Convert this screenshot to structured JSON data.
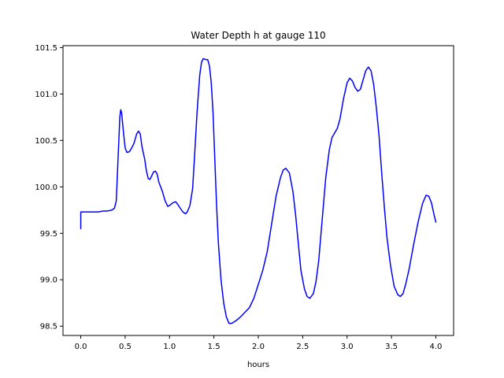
{
  "chart_data": {
    "type": "line",
    "title": "Water Depth h at gauge 110",
    "xlabel": "hours",
    "ylabel": "",
    "xlim": [
      -0.2,
      4.2
    ],
    "ylim": [
      98.4,
      101.52
    ],
    "xticks": [
      0.0,
      0.5,
      1.0,
      1.5,
      2.0,
      2.5,
      3.0,
      3.5,
      4.0
    ],
    "xtick_labels": [
      "0.0",
      "0.5",
      "1.0",
      "1.5",
      "2.0",
      "2.5",
      "3.0",
      "3.5",
      "4.0"
    ],
    "yticks": [
      98.5,
      99.0,
      99.5,
      100.0,
      100.5,
      101.0,
      101.5
    ],
    "ytick_labels": [
      "98.5",
      "99.0",
      "99.5",
      "100.0",
      "100.5",
      "101.0",
      "101.5"
    ],
    "grid": false,
    "legend": "none",
    "series": [
      {
        "color": "#0000ff",
        "points": [
          [
            0.0,
            99.55
          ],
          [
            0.0,
            99.73
          ],
          [
            0.05,
            99.73
          ],
          [
            0.1,
            99.73
          ],
          [
            0.2,
            99.73
          ],
          [
            0.25,
            99.74
          ],
          [
            0.3,
            99.74
          ],
          [
            0.35,
            99.75
          ],
          [
            0.38,
            99.77
          ],
          [
            0.4,
            99.85
          ],
          [
            0.42,
            100.3
          ],
          [
            0.44,
            100.75
          ],
          [
            0.45,
            100.83
          ],
          [
            0.46,
            100.8
          ],
          [
            0.48,
            100.6
          ],
          [
            0.5,
            100.42
          ],
          [
            0.52,
            100.37
          ],
          [
            0.55,
            100.38
          ],
          [
            0.58,
            100.43
          ],
          [
            0.6,
            100.47
          ],
          [
            0.63,
            100.57
          ],
          [
            0.65,
            100.6
          ],
          [
            0.67,
            100.57
          ],
          [
            0.69,
            100.43
          ],
          [
            0.72,
            100.3
          ],
          [
            0.74,
            100.17
          ],
          [
            0.76,
            100.09
          ],
          [
            0.78,
            100.08
          ],
          [
            0.8,
            100.12
          ],
          [
            0.82,
            100.16
          ],
          [
            0.84,
            100.17
          ],
          [
            0.86,
            100.14
          ],
          [
            0.88,
            100.05
          ],
          [
            0.92,
            99.95
          ],
          [
            0.95,
            99.85
          ],
          [
            0.98,
            99.79
          ],
          [
            1.0,
            99.8
          ],
          [
            1.04,
            99.83
          ],
          [
            1.07,
            99.84
          ],
          [
            1.1,
            99.8
          ],
          [
            1.15,
            99.73
          ],
          [
            1.18,
            99.71
          ],
          [
            1.2,
            99.73
          ],
          [
            1.23,
            99.8
          ],
          [
            1.26,
            99.98
          ],
          [
            1.28,
            100.3
          ],
          [
            1.31,
            100.8
          ],
          [
            1.34,
            101.2
          ],
          [
            1.36,
            101.34
          ],
          [
            1.38,
            101.38
          ],
          [
            1.41,
            101.37
          ],
          [
            1.43,
            101.37
          ],
          [
            1.45,
            101.3
          ],
          [
            1.47,
            101.12
          ],
          [
            1.49,
            100.8
          ],
          [
            1.51,
            100.3
          ],
          [
            1.53,
            99.8
          ],
          [
            1.55,
            99.4
          ],
          [
            1.58,
            99.0
          ],
          [
            1.61,
            98.75
          ],
          [
            1.64,
            98.6
          ],
          [
            1.67,
            98.53
          ],
          [
            1.7,
            98.53
          ],
          [
            1.75,
            98.56
          ],
          [
            1.8,
            98.6
          ],
          [
            1.85,
            98.65
          ],
          [
            1.9,
            98.7
          ],
          [
            1.95,
            98.8
          ],
          [
            2.0,
            98.95
          ],
          [
            2.05,
            99.1
          ],
          [
            2.1,
            99.3
          ],
          [
            2.15,
            99.6
          ],
          [
            2.2,
            99.9
          ],
          [
            2.25,
            100.1
          ],
          [
            2.28,
            100.18
          ],
          [
            2.31,
            100.2
          ],
          [
            2.35,
            100.15
          ],
          [
            2.39,
            99.95
          ],
          [
            2.42,
            99.7
          ],
          [
            2.45,
            99.4
          ],
          [
            2.48,
            99.1
          ],
          [
            2.52,
            98.9
          ],
          [
            2.55,
            98.82
          ],
          [
            2.58,
            98.8
          ],
          [
            2.62,
            98.85
          ],
          [
            2.65,
            98.98
          ],
          [
            2.68,
            99.2
          ],
          [
            2.72,
            99.65
          ],
          [
            2.76,
            100.1
          ],
          [
            2.8,
            100.4
          ],
          [
            2.83,
            100.53
          ],
          [
            2.86,
            100.58
          ],
          [
            2.89,
            100.63
          ],
          [
            2.92,
            100.73
          ],
          [
            2.96,
            100.95
          ],
          [
            3.0,
            101.12
          ],
          [
            3.03,
            101.17
          ],
          [
            3.06,
            101.14
          ],
          [
            3.09,
            101.07
          ],
          [
            3.12,
            101.03
          ],
          [
            3.15,
            101.05
          ],
          [
            3.18,
            101.15
          ],
          [
            3.21,
            101.25
          ],
          [
            3.24,
            101.29
          ],
          [
            3.27,
            101.25
          ],
          [
            3.3,
            101.1
          ],
          [
            3.33,
            100.85
          ],
          [
            3.36,
            100.55
          ],
          [
            3.39,
            100.15
          ],
          [
            3.42,
            99.78
          ],
          [
            3.45,
            99.45
          ],
          [
            3.49,
            99.15
          ],
          [
            3.53,
            98.93
          ],
          [
            3.57,
            98.84
          ],
          [
            3.6,
            98.82
          ],
          [
            3.63,
            98.85
          ],
          [
            3.66,
            98.95
          ],
          [
            3.7,
            99.12
          ],
          [
            3.75,
            99.38
          ],
          [
            3.8,
            99.62
          ],
          [
            3.85,
            99.82
          ],
          [
            3.89,
            99.91
          ],
          [
            3.92,
            99.9
          ],
          [
            3.95,
            99.83
          ],
          [
            3.98,
            99.7
          ],
          [
            4.0,
            99.62
          ]
        ]
      }
    ]
  }
}
